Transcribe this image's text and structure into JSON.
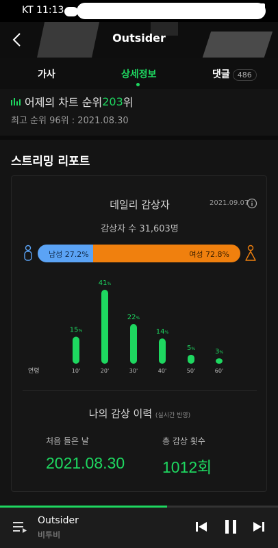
{
  "status_bar": {
    "carrier_time": "KT 11:13"
  },
  "header": {
    "title": "Outsider"
  },
  "tabs": [
    {
      "label": "가사"
    },
    {
      "label": "상세정보"
    },
    {
      "label": "댓글",
      "badge": "486"
    }
  ],
  "chart_rank": {
    "prefix": "어제의 차트 순위 ",
    "rank": "203",
    "suffix": "위"
  },
  "best_rank": "최고 순위 96위 : 2021.08.30",
  "streaming_report": {
    "title": "스트리밍 리포트",
    "daily": {
      "title": "데일리 감상자",
      "date": "2021.09.07",
      "listeners": "감상자 수 31,603명",
      "male": {
        "label": "남성 27.2%",
        "percent": 27.2
      },
      "female": {
        "label": "여성 72.8%",
        "percent": 72.8
      }
    },
    "history": {
      "title": "나의 감상 이력",
      "subtitle": "(실시간 반영)",
      "first_listened_label": "처음 들은 날",
      "first_listened_value": "2021.08.30",
      "total_plays_label": "총 감상 횟수",
      "total_plays_value": "1012회"
    }
  },
  "chart_data": {
    "type": "bar",
    "xlabel": "연령",
    "categories": [
      "10'",
      "20'",
      "30'",
      "40'",
      "50'",
      "60'"
    ],
    "values": [
      15,
      41,
      22,
      14,
      5,
      3
    ],
    "value_unit": "%",
    "bar_color": "#1ed760"
  },
  "player": {
    "track": "Outsider",
    "artist": "비투비",
    "progress": 0.6
  },
  "colors": {
    "accent": "#1ed760",
    "male": "#5ba3f5",
    "female": "#f0800e"
  }
}
